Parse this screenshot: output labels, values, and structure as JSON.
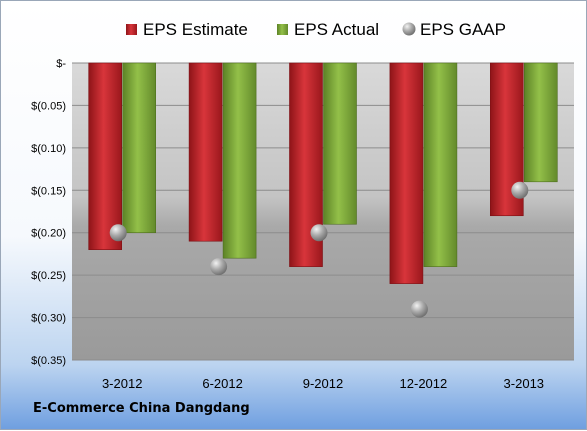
{
  "footer": {
    "company": "E-Commerce China Dangdang"
  },
  "chart_data": {
    "type": "bar",
    "categories": [
      "3-2012",
      "6-2012",
      "9-2012",
      "12-2012",
      "3-2013"
    ],
    "series": [
      {
        "name": "EPS Estimate",
        "type": "bar",
        "color": "#c0272d",
        "values": [
          -0.22,
          -0.21,
          -0.24,
          -0.26,
          -0.18
        ]
      },
      {
        "name": "EPS Actual",
        "type": "bar",
        "color": "#7faa3a",
        "values": [
          -0.2,
          -0.23,
          -0.19,
          -0.24,
          -0.14
        ]
      },
      {
        "name": "EPS GAAP",
        "type": "marker",
        "color": "#9a9ea6",
        "values": [
          -0.2,
          -0.24,
          -0.2,
          -0.29,
          -0.15
        ]
      }
    ],
    "yticks": [
      "$-",
      "$(0.05)",
      "$(0.10)",
      "$(0.15)",
      "$(0.20)",
      "$(0.25)",
      "$(0.30)",
      "$(0.35)"
    ],
    "ylim": [
      -0.35,
      0
    ],
    "ytick_step": 0.05,
    "legend_position": "top",
    "grid": true
  }
}
